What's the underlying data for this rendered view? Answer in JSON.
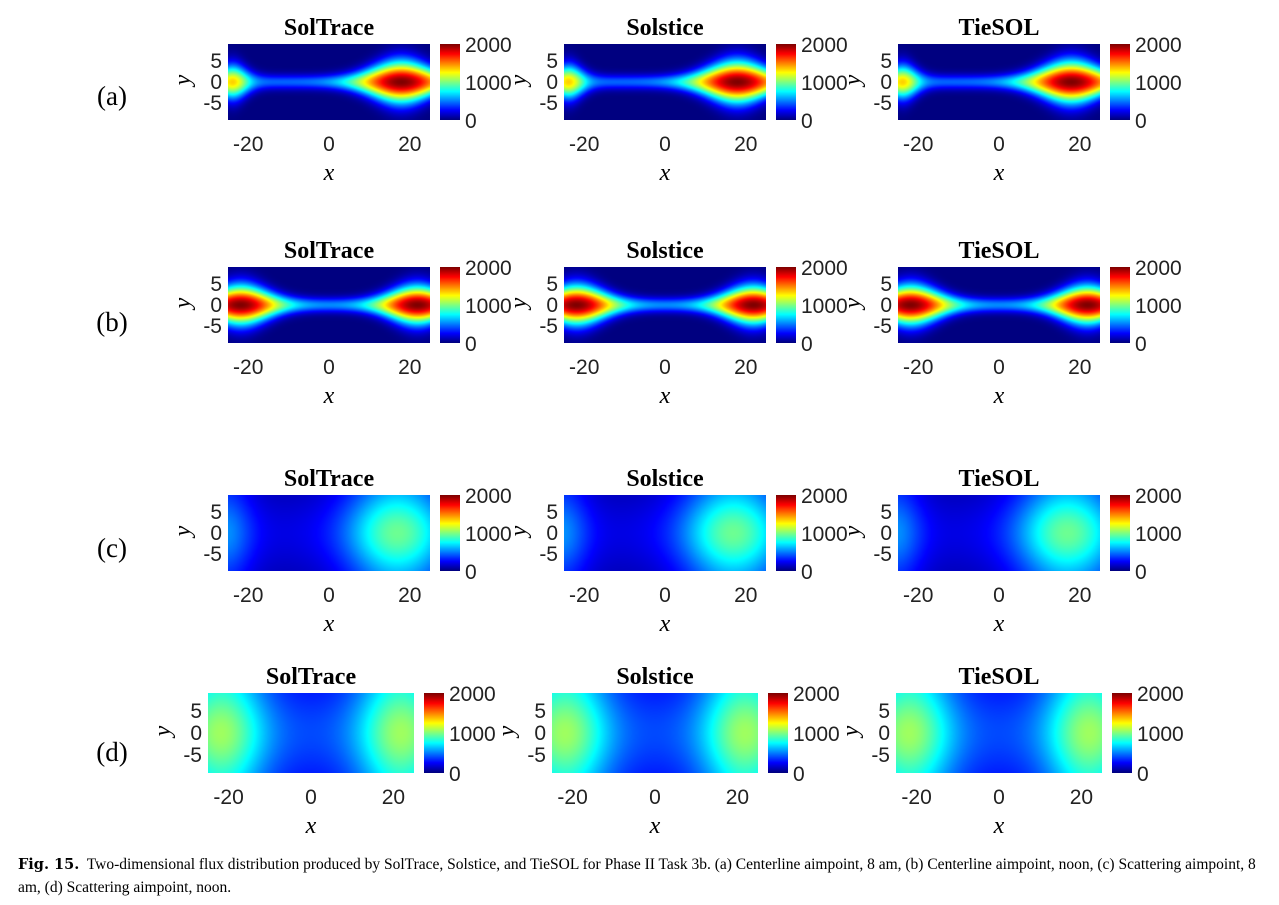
{
  "figure": {
    "label": "Fig. 15.",
    "caption": "Two-dimensional flux distribution produced by SolTrace, Solstice, and TieSOL for Phase II Task 3b. (a) Centerline aimpoint, 8 am, (b) Centerline aimpoint, noon, (c) Scattering aimpoint, 8 am, (d) Scattering aimpoint, noon."
  },
  "chart_data": [
    {
      "type": "heatmap",
      "row": "(a)",
      "title": "SolTrace",
      "xlabel": "x",
      "ylabel": "y",
      "xticks": [
        "-20",
        "0",
        "20"
      ],
      "yticks": [
        "5",
        "0",
        "-5"
      ],
      "xlim": [
        -25,
        25
      ],
      "ylim": [
        -9,
        9
      ],
      "colorbar": {
        "ticks": [
          "2000",
          "1000",
          "0"
        ],
        "range": [
          0,
          2000
        ]
      },
      "pattern": "centerline_8am",
      "peak_flux": 2000,
      "peak_x": 18
    },
    {
      "type": "heatmap",
      "row": "(a)",
      "title": "Solstice",
      "xlabel": "x",
      "ylabel": "y",
      "xticks": [
        "-20",
        "0",
        "20"
      ],
      "yticks": [
        "5",
        "0",
        "-5"
      ],
      "xlim": [
        -25,
        25
      ],
      "ylim": [
        -9,
        9
      ],
      "colorbar": {
        "ticks": [
          "2000",
          "1000",
          "0"
        ],
        "range": [
          0,
          2000
        ]
      },
      "pattern": "centerline_8am",
      "peak_flux": 2000,
      "peak_x": 18
    },
    {
      "type": "heatmap",
      "row": "(a)",
      "title": "TieSOL",
      "xlabel": "x",
      "ylabel": "y",
      "xticks": [
        "-20",
        "0",
        "20"
      ],
      "yticks": [
        "5",
        "0",
        "-5"
      ],
      "xlim": [
        -25,
        25
      ],
      "ylim": [
        -9,
        9
      ],
      "colorbar": {
        "ticks": [
          "2000",
          "1000",
          "0"
        ],
        "range": [
          0,
          2000
        ]
      },
      "pattern": "centerline_8am",
      "peak_flux": 2000,
      "peak_x": 18
    },
    {
      "type": "heatmap",
      "row": "(b)",
      "title": "SolTrace",
      "xlabel": "x",
      "ylabel": "y",
      "xticks": [
        "-20",
        "0",
        "20"
      ],
      "yticks": [
        "5",
        "0",
        "-5"
      ],
      "xlim": [
        -25,
        25
      ],
      "ylim": [
        -9,
        9
      ],
      "colorbar": {
        "ticks": [
          "2000",
          "1000",
          "0"
        ],
        "range": [
          0,
          2000
        ]
      },
      "pattern": "centerline_noon",
      "peak_flux": 2000,
      "peak_x": -22
    },
    {
      "type": "heatmap",
      "row": "(b)",
      "title": "Solstice",
      "xlabel": "x",
      "ylabel": "y",
      "xticks": [
        "-20",
        "0",
        "20"
      ],
      "yticks": [
        "5",
        "0",
        "-5"
      ],
      "xlim": [
        -25,
        25
      ],
      "ylim": [
        -9,
        9
      ],
      "colorbar": {
        "ticks": [
          "2000",
          "1000",
          "0"
        ],
        "range": [
          0,
          2000
        ]
      },
      "pattern": "centerline_noon",
      "peak_flux": 2000,
      "peak_x": -22
    },
    {
      "type": "heatmap",
      "row": "(b)",
      "title": "TieSOL",
      "xlabel": "x",
      "ylabel": "y",
      "xticks": [
        "-20",
        "0",
        "20"
      ],
      "yticks": [
        "5",
        "0",
        "-5"
      ],
      "xlim": [
        -25,
        25
      ],
      "ylim": [
        -9,
        9
      ],
      "colorbar": {
        "ticks": [
          "2000",
          "1000",
          "0"
        ],
        "range": [
          0,
          2000
        ]
      },
      "pattern": "centerline_noon",
      "peak_flux": 2000,
      "peak_x": -22
    },
    {
      "type": "heatmap",
      "row": "(c)",
      "title": "SolTrace",
      "xlabel": "x",
      "ylabel": "y",
      "xticks": [
        "-20",
        "0",
        "20"
      ],
      "yticks": [
        "5",
        "0",
        "-5"
      ],
      "xlim": [
        -25,
        25
      ],
      "ylim": [
        -9,
        9
      ],
      "colorbar": {
        "ticks": [
          "2000",
          "1000",
          "0"
        ],
        "range": [
          0,
          2000
        ]
      },
      "pattern": "scattering_8am",
      "peak_flux": 1250,
      "peak_x": 17
    },
    {
      "type": "heatmap",
      "row": "(c)",
      "title": "Solstice",
      "xlabel": "x",
      "ylabel": "y",
      "xticks": [
        "-20",
        "0",
        "20"
      ],
      "yticks": [
        "5",
        "0",
        "-5"
      ],
      "xlim": [
        -25,
        25
      ],
      "ylim": [
        -9,
        9
      ],
      "colorbar": {
        "ticks": [
          "2000",
          "1000",
          "0"
        ],
        "range": [
          0,
          2000
        ]
      },
      "pattern": "scattering_8am",
      "peak_flux": 1250,
      "peak_x": 17
    },
    {
      "type": "heatmap",
      "row": "(c)",
      "title": "TieSOL",
      "xlabel": "x",
      "ylabel": "y",
      "xticks": [
        "-20",
        "0",
        "20"
      ],
      "yticks": [
        "5",
        "0",
        "-5"
      ],
      "xlim": [
        -25,
        25
      ],
      "ylim": [
        -9,
        9
      ],
      "colorbar": {
        "ticks": [
          "2000",
          "1000",
          "0"
        ],
        "range": [
          0,
          2000
        ]
      },
      "pattern": "scattering_8am",
      "peak_flux": 1250,
      "peak_x": 17
    },
    {
      "type": "heatmap",
      "row": "(d)",
      "title": "SolTrace",
      "xlabel": "x",
      "ylabel": "y",
      "xticks": [
        "-20",
        "0",
        "20"
      ],
      "yticks": [
        "5",
        "0",
        "-5"
      ],
      "xlim": [
        -25,
        25
      ],
      "ylim": [
        -9,
        9
      ],
      "colorbar": {
        "ticks": [
          "2000",
          "1000",
          "0"
        ],
        "range": [
          0,
          2000
        ]
      },
      "pattern": "scattering_noon",
      "peak_flux": 1250,
      "peak_x": -22
    },
    {
      "type": "heatmap",
      "row": "(d)",
      "title": "Solstice",
      "xlabel": "x",
      "ylabel": "y",
      "xticks": [
        "-20",
        "0",
        "20"
      ],
      "yticks": [
        "5",
        "0",
        "-5"
      ],
      "xlim": [
        -25,
        25
      ],
      "ylim": [
        -9,
        9
      ],
      "colorbar": {
        "ticks": [
          "2000",
          "1000",
          "0"
        ],
        "range": [
          0,
          2000
        ]
      },
      "pattern": "scattering_noon",
      "peak_flux": 1250,
      "peak_x": -22
    },
    {
      "type": "heatmap",
      "row": "(d)",
      "title": "TieSOL",
      "xlabel": "x",
      "ylabel": "y",
      "xticks": [
        "-20",
        "0",
        "20"
      ],
      "yticks": [
        "5",
        "0",
        "-5"
      ],
      "xlim": [
        -25,
        25
      ],
      "ylim": [
        -9,
        9
      ],
      "colorbar": {
        "ticks": [
          "2000",
          "1000",
          "0"
        ],
        "range": [
          0,
          2000
        ]
      },
      "pattern": "scattering_noon",
      "peak_flux": 1250,
      "peak_x": -22
    }
  ]
}
